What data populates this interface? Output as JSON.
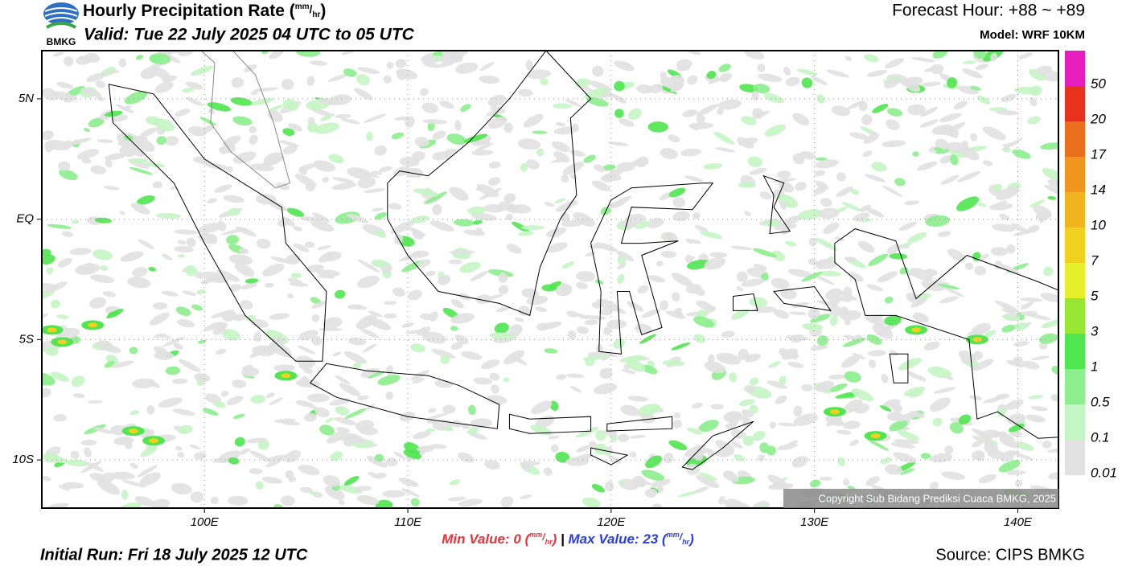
{
  "header": {
    "logo": "BMKG",
    "title": "Hourly Precipitation Rate",
    "unit_numerator": "mm",
    "unit_denominator": "hr",
    "valid": "Valid: Tue 22 July 2025 04 UTC to 05 UTC",
    "forecast_hour": "Forecast Hour: +88 ~ +89",
    "model": "Model: WRF 10KM"
  },
  "map": {
    "xlim": [
      92,
      142
    ],
    "ylim": [
      -12,
      7
    ],
    "xticks": [
      {
        "value": 100,
        "label": "100E"
      },
      {
        "value": 110,
        "label": "110E"
      },
      {
        "value": 120,
        "label": "120E"
      },
      {
        "value": 130,
        "label": "130E"
      },
      {
        "value": 140,
        "label": "140E"
      }
    ],
    "yticks": [
      {
        "value": 5,
        "label": "5N"
      },
      {
        "value": 0,
        "label": "EQ"
      },
      {
        "value": -5,
        "label": "5S"
      },
      {
        "value": -10,
        "label": "10S"
      }
    ],
    "copyright": "Copyright Sub Bidang Prediksi Cuaca BMKG, 2025"
  },
  "colorbar": {
    "levels": [
      0.01,
      0.1,
      0.5,
      1,
      3,
      5,
      7,
      10,
      14,
      17,
      20,
      50
    ],
    "colors": [
      "#e1e1e1",
      "#c4f5c4",
      "#8cee8c",
      "#50e650",
      "#96e632",
      "#e6f028",
      "#f0d21e",
      "#f0b41e",
      "#f0961e",
      "#eb6e1e",
      "#e6321e",
      "#e61ebe"
    ]
  },
  "footer": {
    "min_label": "Min Value:",
    "min_value": 0,
    "max_label": "Max Value:",
    "max_value": 23,
    "initial_run": "Initial Run: Fri 18 July 2025 12 UTC",
    "source": "Source: CIPS BMKG"
  }
}
